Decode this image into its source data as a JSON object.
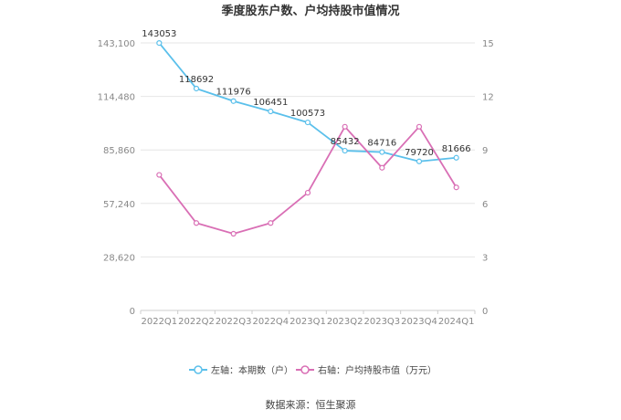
{
  "chart_data": {
    "type": "line",
    "title": "季度股东户数、户均持股市值情况",
    "categories": [
      "2022Q1",
      "2022Q2",
      "2022Q3",
      "2022Q4",
      "2023Q1",
      "2023Q2",
      "2023Q3",
      "2023Q4",
      "2024Q1"
    ],
    "series": [
      {
        "name": "左轴：本期数（户）",
        "axis": "left",
        "color": "#5bc0eb",
        "values": [
          143053,
          118692,
          111976,
          106451,
          100573,
          85432,
          84716,
          79720,
          81666
        ],
        "labels": [
          "143053",
          "118692",
          "111976",
          "106451",
          "100573",
          "85432",
          "84716",
          "79720",
          "81666"
        ]
      },
      {
        "name": "右轴：户均持股市值（万元）",
        "axis": "right",
        "color": "#d96fb5",
        "values": [
          7.6,
          4.9,
          4.3,
          4.9,
          6.6,
          10.3,
          8.0,
          10.3,
          6.9
        ]
      }
    ],
    "left_axis": {
      "ylim": [
        0,
        143100
      ],
      "ticks": [
        0,
        28620,
        57240,
        85860,
        114480,
        143100
      ],
      "tick_labels": [
        "0",
        "28,620",
        "57,240",
        "85,860",
        "114,480",
        "143,100"
      ]
    },
    "right_axis": {
      "ylim": [
        0,
        15
      ],
      "ticks": [
        0,
        3,
        6,
        9,
        12,
        15
      ],
      "tick_labels": [
        "0",
        "3",
        "6",
        "9",
        "12",
        "15"
      ]
    },
    "grid": true,
    "legend_position": "bottom-center"
  },
  "source": "数据来源：恒生聚源"
}
